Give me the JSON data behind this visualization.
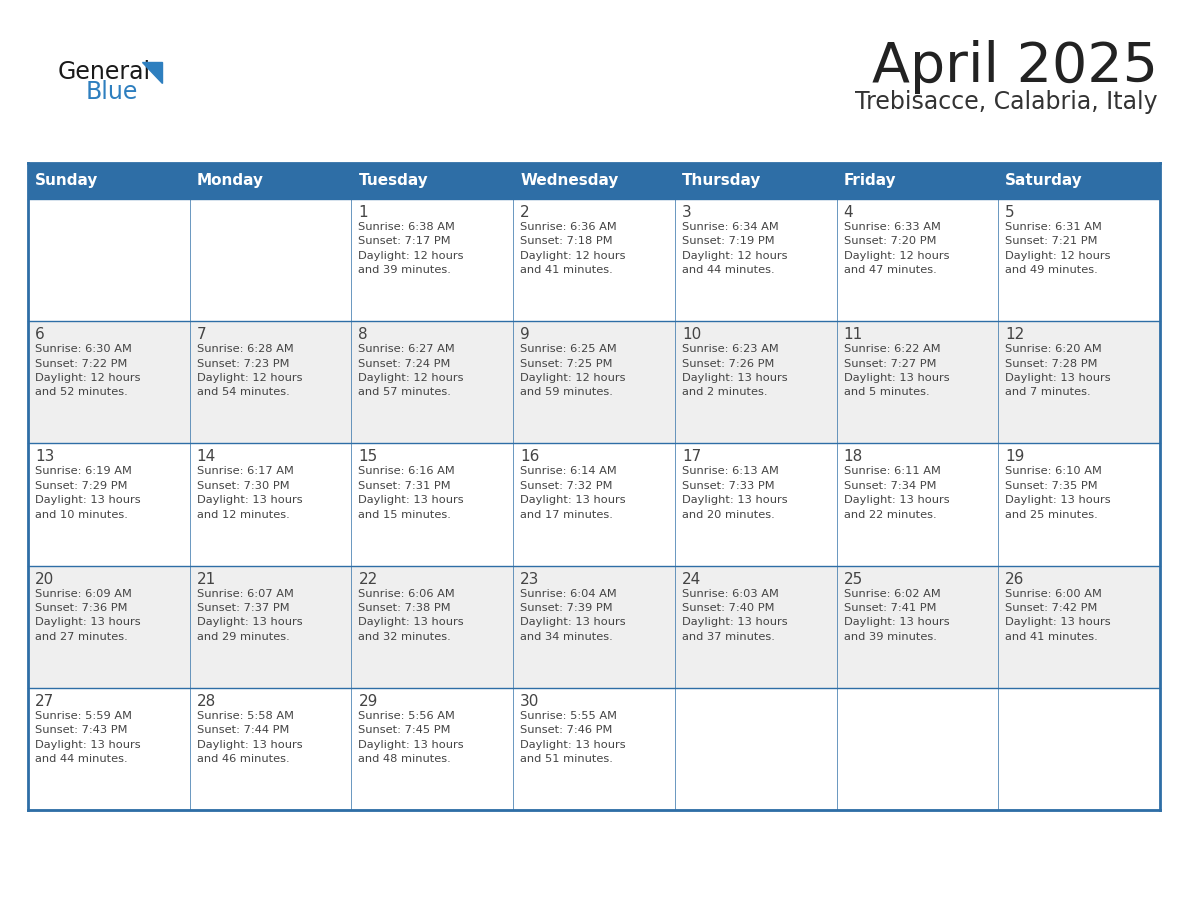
{
  "title": "April 2025",
  "subtitle": "Trebisacce, Calabria, Italy",
  "header_bg": "#2E6EA6",
  "header_text_color": "#FFFFFF",
  "header_days": [
    "Sunday",
    "Monday",
    "Tuesday",
    "Wednesday",
    "Thursday",
    "Friday",
    "Saturday"
  ],
  "row_bg_white": "#FFFFFF",
  "row_bg_gray": "#EFEFEF",
  "border_color": "#2E6EA6",
  "title_color": "#222222",
  "subtitle_color": "#333333",
  "cell_text_color": "#444444",
  "logo_text_color": "#1a1a1a",
  "logo_blue_color": "#2E7FBF",
  "weeks": [
    [
      {
        "day": null,
        "info": null
      },
      {
        "day": null,
        "info": null
      },
      {
        "day": 1,
        "info": "Sunrise: 6:38 AM\nSunset: 7:17 PM\nDaylight: 12 hours\nand 39 minutes."
      },
      {
        "day": 2,
        "info": "Sunrise: 6:36 AM\nSunset: 7:18 PM\nDaylight: 12 hours\nand 41 minutes."
      },
      {
        "day": 3,
        "info": "Sunrise: 6:34 AM\nSunset: 7:19 PM\nDaylight: 12 hours\nand 44 minutes."
      },
      {
        "day": 4,
        "info": "Sunrise: 6:33 AM\nSunset: 7:20 PM\nDaylight: 12 hours\nand 47 minutes."
      },
      {
        "day": 5,
        "info": "Sunrise: 6:31 AM\nSunset: 7:21 PM\nDaylight: 12 hours\nand 49 minutes."
      }
    ],
    [
      {
        "day": 6,
        "info": "Sunrise: 6:30 AM\nSunset: 7:22 PM\nDaylight: 12 hours\nand 52 minutes."
      },
      {
        "day": 7,
        "info": "Sunrise: 6:28 AM\nSunset: 7:23 PM\nDaylight: 12 hours\nand 54 minutes."
      },
      {
        "day": 8,
        "info": "Sunrise: 6:27 AM\nSunset: 7:24 PM\nDaylight: 12 hours\nand 57 minutes."
      },
      {
        "day": 9,
        "info": "Sunrise: 6:25 AM\nSunset: 7:25 PM\nDaylight: 12 hours\nand 59 minutes."
      },
      {
        "day": 10,
        "info": "Sunrise: 6:23 AM\nSunset: 7:26 PM\nDaylight: 13 hours\nand 2 minutes."
      },
      {
        "day": 11,
        "info": "Sunrise: 6:22 AM\nSunset: 7:27 PM\nDaylight: 13 hours\nand 5 minutes."
      },
      {
        "day": 12,
        "info": "Sunrise: 6:20 AM\nSunset: 7:28 PM\nDaylight: 13 hours\nand 7 minutes."
      }
    ],
    [
      {
        "day": 13,
        "info": "Sunrise: 6:19 AM\nSunset: 7:29 PM\nDaylight: 13 hours\nand 10 minutes."
      },
      {
        "day": 14,
        "info": "Sunrise: 6:17 AM\nSunset: 7:30 PM\nDaylight: 13 hours\nand 12 minutes."
      },
      {
        "day": 15,
        "info": "Sunrise: 6:16 AM\nSunset: 7:31 PM\nDaylight: 13 hours\nand 15 minutes."
      },
      {
        "day": 16,
        "info": "Sunrise: 6:14 AM\nSunset: 7:32 PM\nDaylight: 13 hours\nand 17 minutes."
      },
      {
        "day": 17,
        "info": "Sunrise: 6:13 AM\nSunset: 7:33 PM\nDaylight: 13 hours\nand 20 minutes."
      },
      {
        "day": 18,
        "info": "Sunrise: 6:11 AM\nSunset: 7:34 PM\nDaylight: 13 hours\nand 22 minutes."
      },
      {
        "day": 19,
        "info": "Sunrise: 6:10 AM\nSunset: 7:35 PM\nDaylight: 13 hours\nand 25 minutes."
      }
    ],
    [
      {
        "day": 20,
        "info": "Sunrise: 6:09 AM\nSunset: 7:36 PM\nDaylight: 13 hours\nand 27 minutes."
      },
      {
        "day": 21,
        "info": "Sunrise: 6:07 AM\nSunset: 7:37 PM\nDaylight: 13 hours\nand 29 minutes."
      },
      {
        "day": 22,
        "info": "Sunrise: 6:06 AM\nSunset: 7:38 PM\nDaylight: 13 hours\nand 32 minutes."
      },
      {
        "day": 23,
        "info": "Sunrise: 6:04 AM\nSunset: 7:39 PM\nDaylight: 13 hours\nand 34 minutes."
      },
      {
        "day": 24,
        "info": "Sunrise: 6:03 AM\nSunset: 7:40 PM\nDaylight: 13 hours\nand 37 minutes."
      },
      {
        "day": 25,
        "info": "Sunrise: 6:02 AM\nSunset: 7:41 PM\nDaylight: 13 hours\nand 39 minutes."
      },
      {
        "day": 26,
        "info": "Sunrise: 6:00 AM\nSunset: 7:42 PM\nDaylight: 13 hours\nand 41 minutes."
      }
    ],
    [
      {
        "day": 27,
        "info": "Sunrise: 5:59 AM\nSunset: 7:43 PM\nDaylight: 13 hours\nand 44 minutes."
      },
      {
        "day": 28,
        "info": "Sunrise: 5:58 AM\nSunset: 7:44 PM\nDaylight: 13 hours\nand 46 minutes."
      },
      {
        "day": 29,
        "info": "Sunrise: 5:56 AM\nSunset: 7:45 PM\nDaylight: 13 hours\nand 48 minutes."
      },
      {
        "day": 30,
        "info": "Sunrise: 5:55 AM\nSunset: 7:46 PM\nDaylight: 13 hours\nand 51 minutes."
      },
      {
        "day": null,
        "info": null
      },
      {
        "day": null,
        "info": null
      },
      {
        "day": null,
        "info": null
      }
    ]
  ]
}
